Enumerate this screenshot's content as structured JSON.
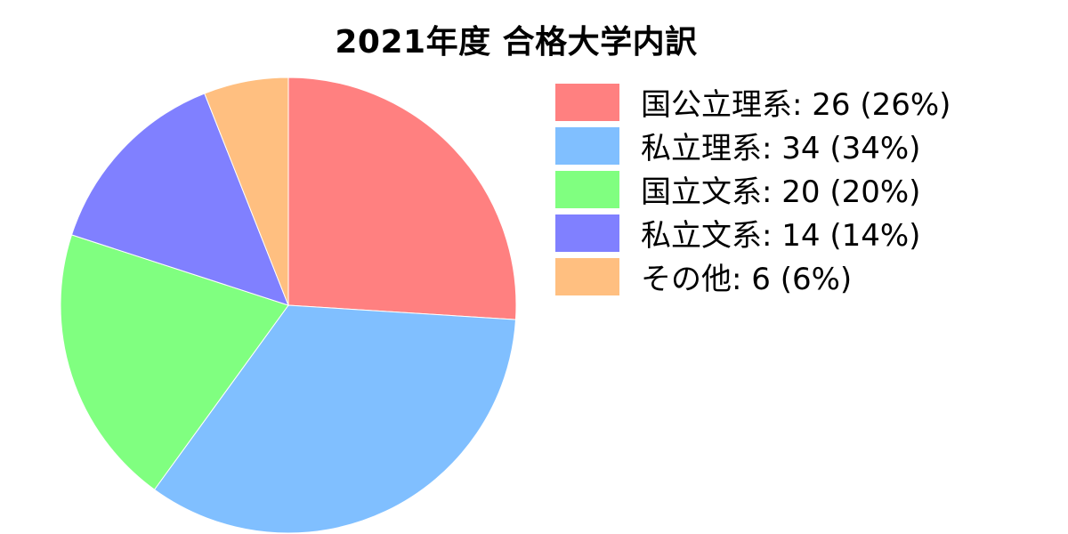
{
  "chart_data": {
    "type": "pie",
    "title": "2021年度 合格大学内訳",
    "categories": [
      "国公立理系",
      "私立理系",
      "国立文系",
      "私立文系",
      "その他"
    ],
    "values": [
      26,
      34,
      20,
      14,
      6
    ],
    "percentages": [
      "26%",
      "34%",
      "20%",
      "14%",
      "6%"
    ],
    "legend_labels": [
      "国公立理系: 26 (26%)",
      "私立理系: 34 (34%)",
      "国立文系: 20 (20%)",
      "私立文系: 14 (14%)",
      "その他: 6 (6%)"
    ],
    "colors": [
      "#ff8080",
      "#80bfff",
      "#80ff80",
      "#8080ff",
      "#ffbf80"
    ],
    "start_angle": "12 o'clock",
    "direction": "clockwise",
    "legend_position": "top-right"
  }
}
